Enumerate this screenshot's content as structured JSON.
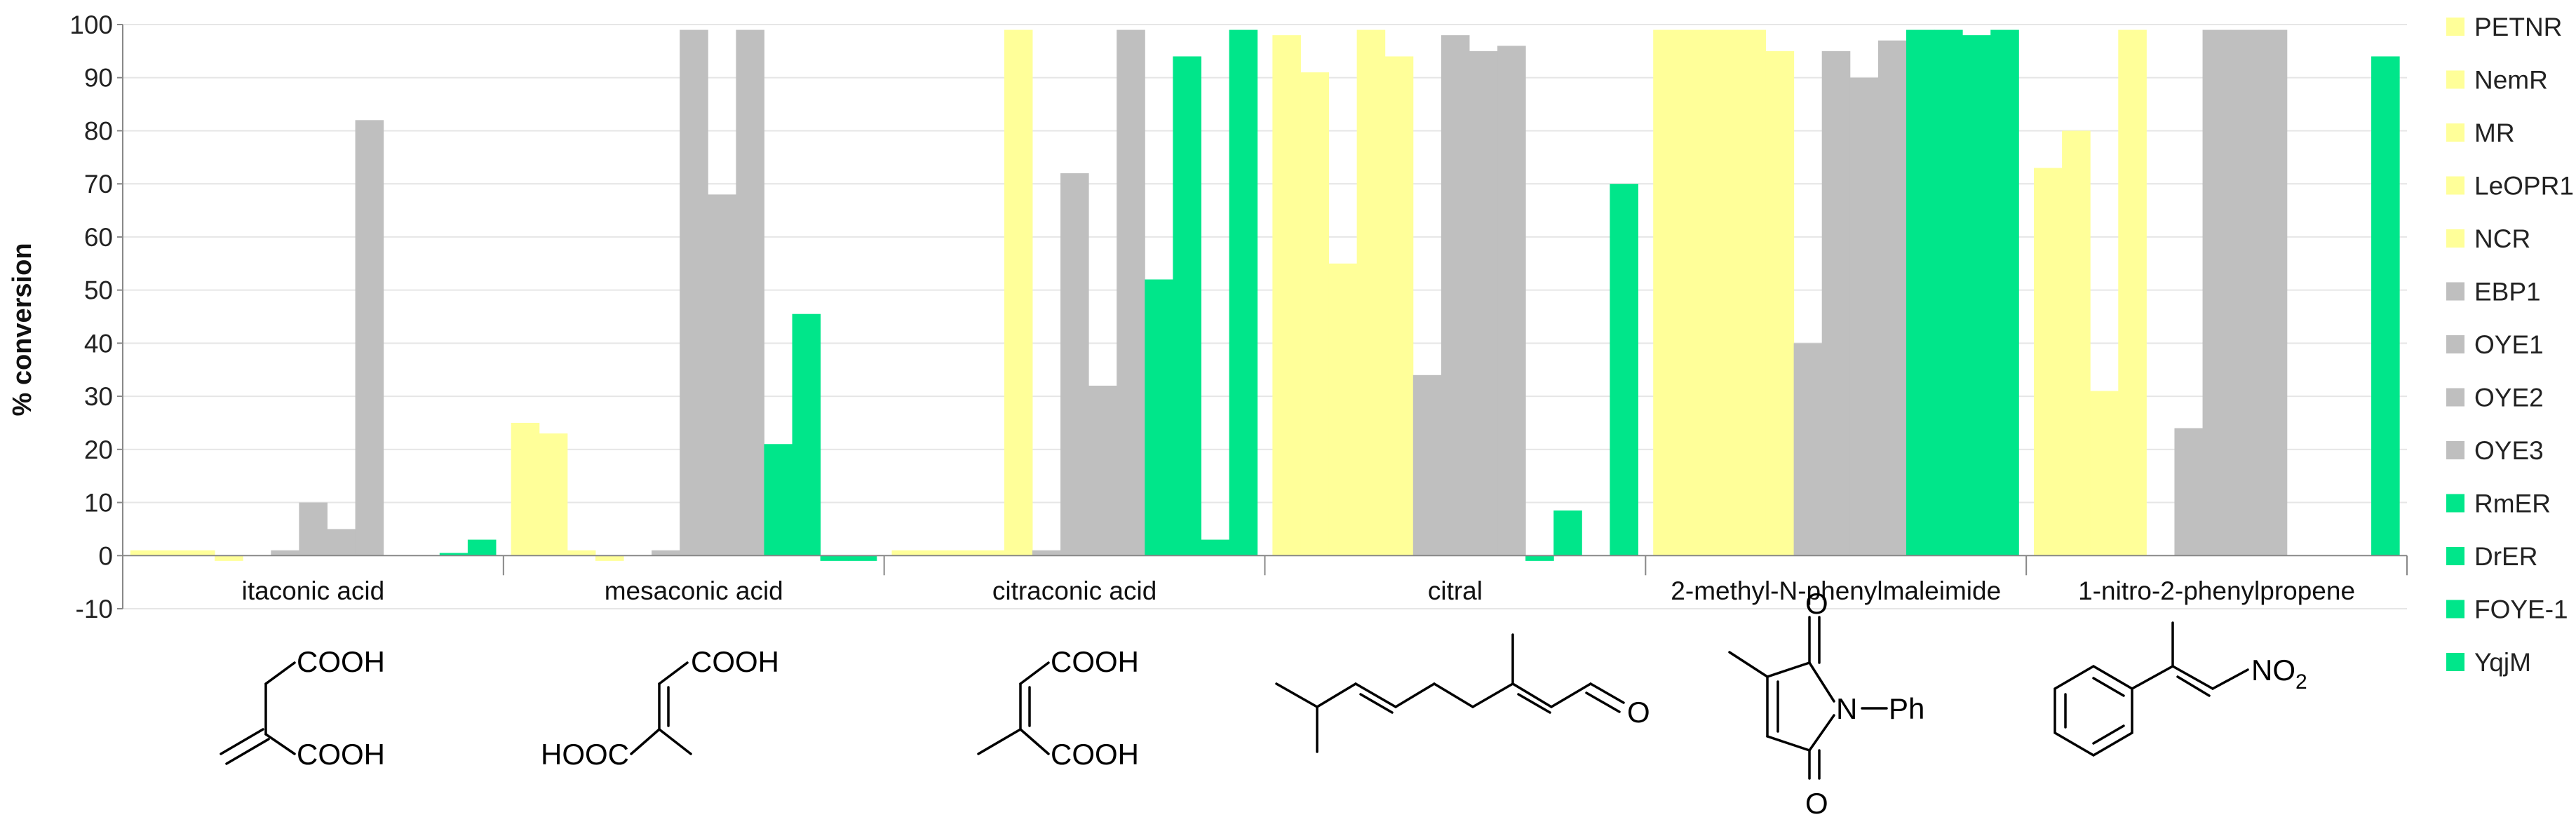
{
  "chart_data": {
    "type": "bar",
    "ylabel": "% conversion",
    "xlabel": "",
    "ylim": [
      -10,
      100
    ],
    "yticks": [
      -10,
      0,
      10,
      20,
      30,
      40,
      50,
      60,
      70,
      80,
      90,
      100
    ],
    "grid": "horizontal",
    "legend_position": "right",
    "categories": [
      "itaconic acid",
      "mesaconic acid",
      "citraconic acid",
      "citral",
      "2-methyl-N-phenylmaleimide",
      "1-nitro-2-phenylpropene"
    ],
    "colors": {
      "yellow": "#FFFF99",
      "gray": "#BFBFBF",
      "green": "#00E68A"
    },
    "series": [
      {
        "name": "PETNR",
        "color": "#FFFF99",
        "values": [
          1,
          25,
          1,
          98,
          99,
          73
        ]
      },
      {
        "name": "NemR",
        "color": "#FFFF99",
        "values": [
          1,
          23,
          1,
          91,
          99,
          80
        ]
      },
      {
        "name": "MR",
        "color": "#FFFF99",
        "values": [
          1,
          1,
          1,
          55,
          99,
          31
        ]
      },
      {
        "name": "LeOPR1",
        "color": "#FFFF99",
        "values": [
          -1,
          -1,
          1,
          99,
          99,
          99
        ]
      },
      {
        "name": "NCR",
        "color": "#FFFF99",
        "values": [
          0,
          0,
          99,
          94,
          95,
          0
        ]
      },
      {
        "name": "EBP1",
        "color": "#BFBFBF",
        "values": [
          1,
          1,
          1,
          34,
          40,
          24
        ]
      },
      {
        "name": "OYE1",
        "color": "#BFBFBF",
        "values": [
          10,
          99,
          72,
          98,
          95,
          99
        ]
      },
      {
        "name": "OYE2",
        "color": "#BFBFBF",
        "values": [
          5,
          68,
          32,
          95,
          90,
          99
        ]
      },
      {
        "name": "OYE3",
        "color": "#BFBFBF",
        "values": [
          82,
          99,
          99,
          96,
          97,
          99
        ]
      },
      {
        "name": "RmER",
        "color": "#00E68A",
        "values": [
          0,
          21,
          52,
          -1,
          99,
          0
        ]
      },
      {
        "name": "DrER",
        "color": "#00E68A",
        "values": [
          0,
          45.5,
          94,
          8.5,
          99,
          0
        ]
      },
      {
        "name": "FOYE-1",
        "color": "#00E68A",
        "values": [
          0.5,
          -1,
          3,
          0,
          98,
          0
        ]
      },
      {
        "name": "YqjM",
        "color": "#00E68A",
        "values": [
          3,
          -1,
          99,
          70,
          99,
          94
        ]
      }
    ]
  },
  "structures": {
    "itaconic": {
      "top": "COOH",
      "bottom": "COOH"
    },
    "mesaconic": {
      "top": "COOH",
      "left": "HOOC"
    },
    "citraconic": {
      "top": "COOH",
      "bottom": "COOH"
    },
    "citral": {
      "o": "O"
    },
    "maleimide": {
      "o_top": "O",
      "o_bottom": "O",
      "n": "N",
      "ph": "Ph"
    },
    "nitro": {
      "no2": "NO",
      "sub": "2"
    }
  }
}
